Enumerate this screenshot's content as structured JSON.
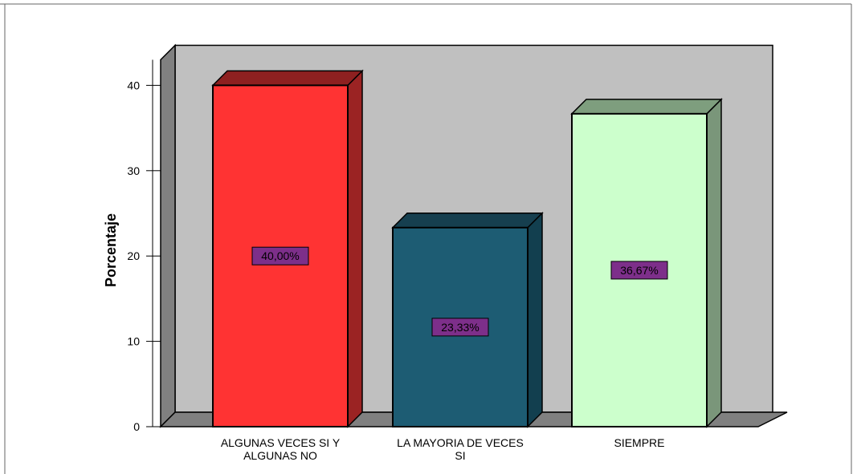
{
  "chart_data": {
    "type": "bar",
    "title": "",
    "xlabel": "",
    "ylabel": "Porcentaje",
    "ylim": [
      0,
      43
    ],
    "yticks": [
      0,
      10,
      20,
      30,
      40
    ],
    "grid": false,
    "categories": [
      [
        "ALGUNAS VECES SI Y",
        "ALGUNAS NO"
      ],
      [
        "LA MAYORIA DE VECES",
        "SI"
      ],
      [
        "SIEMPRE"
      ]
    ],
    "values": [
      40.0,
      23.33,
      36.67
    ],
    "data_labels": [
      "40,00%",
      "23,33%",
      "36,67%"
    ],
    "colors": [
      {
        "front": "#ff3333",
        "side": "#9b2323",
        "top": "#8e2020"
      },
      {
        "front": "#1d5c73",
        "side": "#123f4f",
        "top": "#163f4f"
      },
      {
        "front": "#ccffcc",
        "side": "#7a967a",
        "top": "#7e9e7e"
      }
    ],
    "label_box_color": "#7d2f8a",
    "wall_color": "#c0c0c0",
    "wall_side_color": "#808080"
  }
}
